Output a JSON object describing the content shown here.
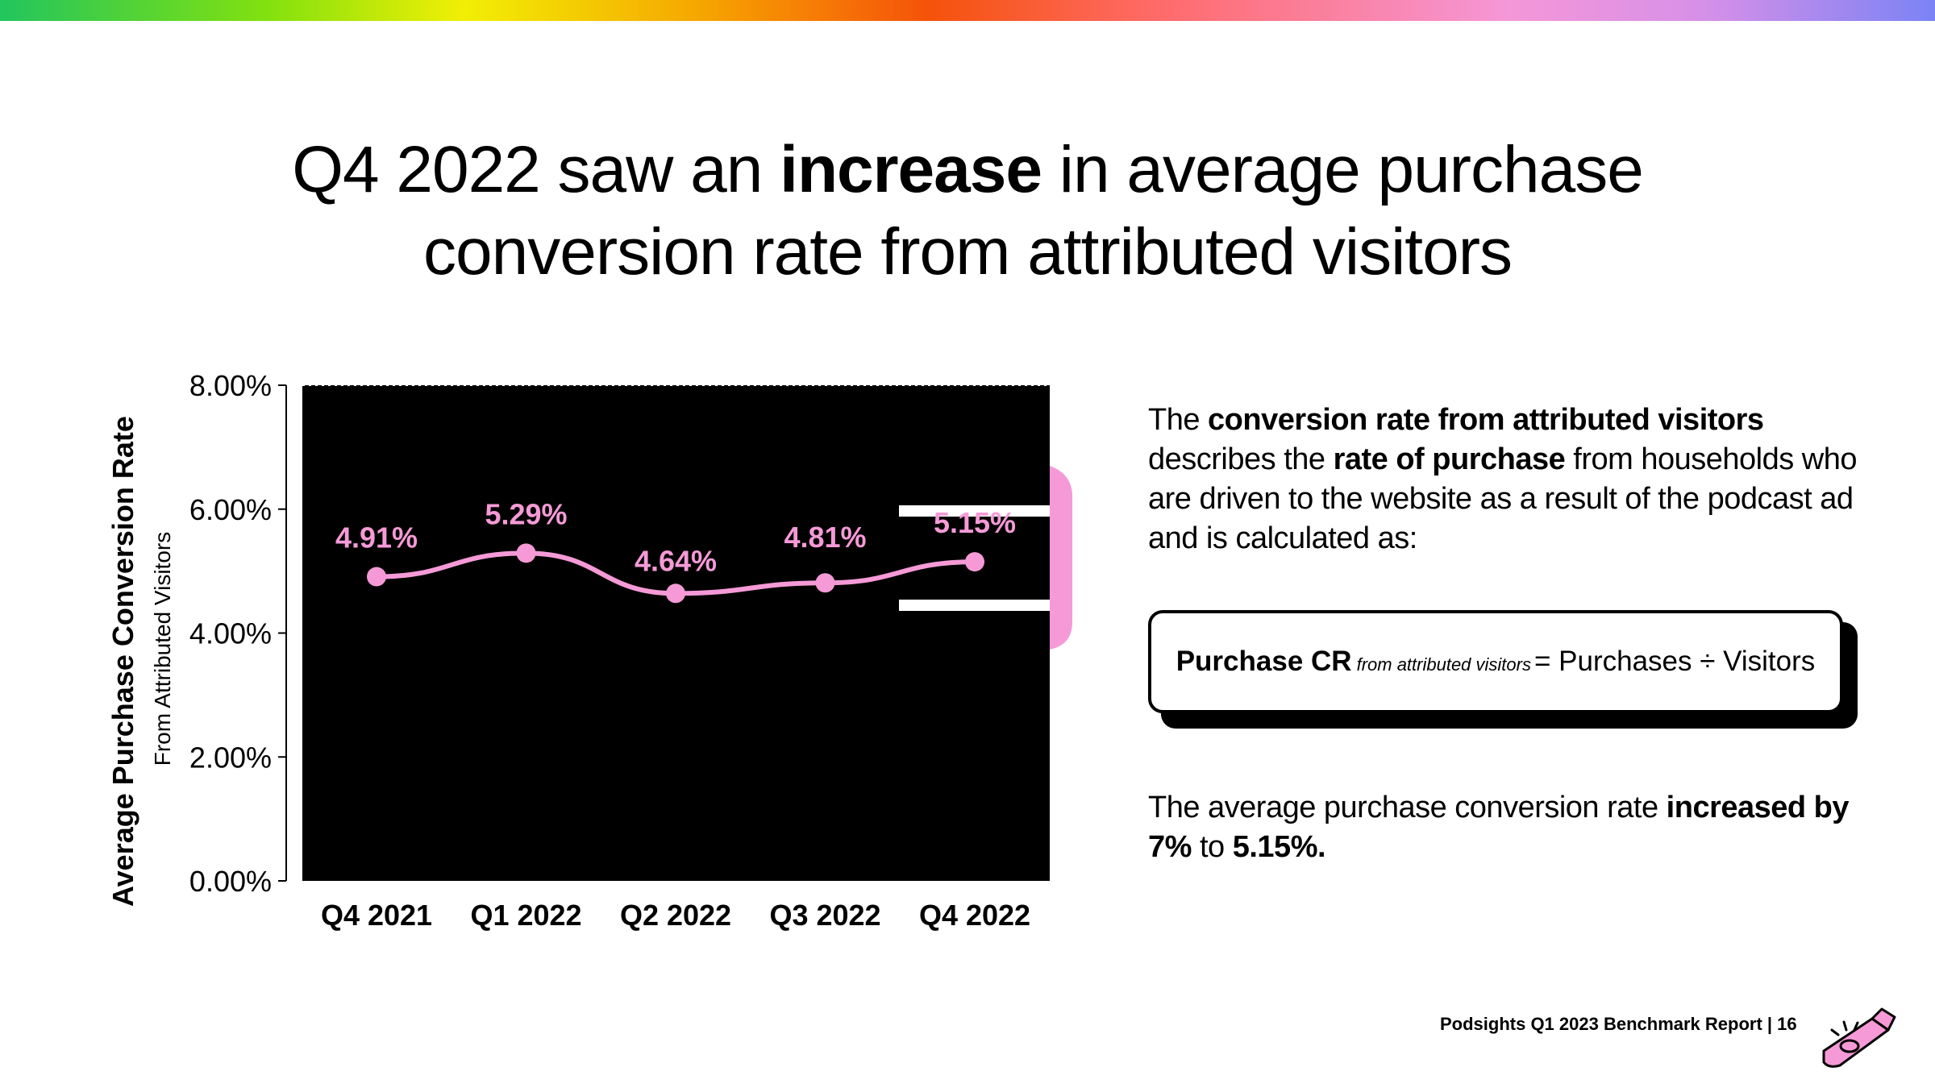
{
  "title": {
    "line1_pre": "Q4 2022 saw an ",
    "line1_bold": "increase",
    "line1_post": " in average purchase",
    "line2": "conversion rate from attributed visitors"
  },
  "chart_data": {
    "type": "line",
    "categories": [
      "Q4 2021",
      "Q1 2022",
      "Q2 2022",
      "Q3 2022",
      "Q4 2022"
    ],
    "series": [
      {
        "values": [
          4.91,
          5.29,
          4.64,
          4.81,
          5.15
        ]
      }
    ],
    "data_labels": [
      "4.91%",
      "5.29%",
      "4.64%",
      "4.81%",
      "5.15%"
    ],
    "ylabel": "Average Purchase Conversion Rate",
    "ylabel_sub": "From Attributed Visitors",
    "ylim": [
      0,
      8
    ],
    "yticks": [
      "0.00%",
      "2.00%",
      "4.00%",
      "6.00%",
      "8.00%"
    ],
    "plot_background": "#000000",
    "series_color": "#f59ad7",
    "grid": false
  },
  "description": {
    "p1": "The ",
    "b1": "conversion rate from attributed visitors",
    "p2": " describes the ",
    "b2": "rate of purchase",
    "p3": " from households who are driven to the website as a result of the podcast ad and is calculated as:"
  },
  "formula": {
    "lhs": "Purchase CR",
    "subscript": "from attributed visitors",
    "rhs": "= Purchases ÷ Visitors"
  },
  "summary": {
    "p1": "The average purchase conversion rate ",
    "b1": "increased by 7%",
    "p2": " to ",
    "b2": "5.15%."
  },
  "footer": {
    "text": "Podsights Q1 2023 Benchmark Report | 16"
  },
  "colors": {
    "accent_pink": "#f59ad7",
    "text": "#000000",
    "background": "#ffffff"
  }
}
